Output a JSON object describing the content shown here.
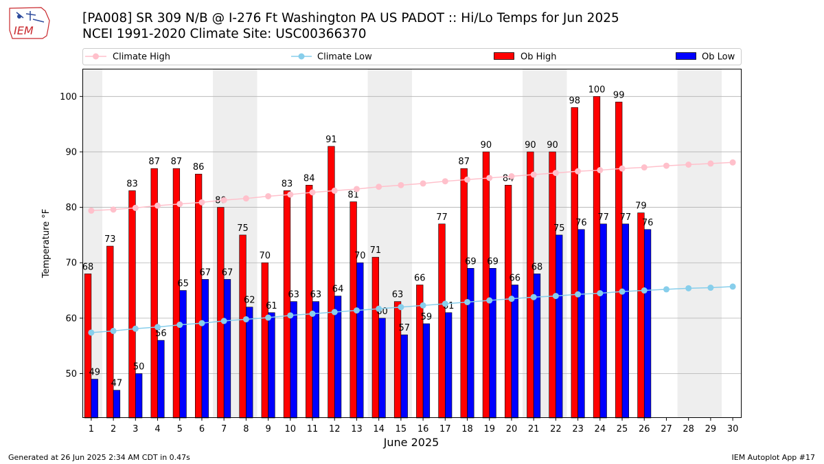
{
  "title_line1": "[PA008] SR 309 N/B @ I-276 Ft Washington PA US  PADOT :: Hi/Lo Temps for Jun 2025",
  "title_line2": "NCEI 1991-2020 Climate Site: USC00366370",
  "logo_text": "IEM",
  "footer_left": "Generated at 26 Jun 2025 2:34 AM CDT in 0.47s",
  "footer_right": "IEM Autoplot App #17",
  "colors": {
    "climate_high": "#ffc0cb",
    "climate_low": "#87ceeb",
    "ob_high": "#ff0000",
    "ob_low": "#0000ff",
    "weekend_shade": "#eeeeee",
    "grid": "#b0b0b0"
  },
  "chart_data": {
    "type": "bar",
    "xlabel": "June 2025",
    "ylabel": "Temperature °F",
    "ylim": [
      42,
      105
    ],
    "yticks": [
      50,
      60,
      70,
      80,
      90,
      100
    ],
    "grid": "horizontal",
    "legend_placement": "top",
    "shaded_weekend_days": [
      1,
      7,
      8,
      14,
      15,
      21,
      22,
      28,
      29
    ],
    "x": [
      1,
      2,
      3,
      4,
      5,
      6,
      7,
      8,
      9,
      10,
      11,
      12,
      13,
      14,
      15,
      16,
      17,
      18,
      19,
      20,
      21,
      22,
      23,
      24,
      25,
      26,
      27,
      28,
      29,
      30
    ],
    "series": [
      {
        "name": "Climate High",
        "kind": "line",
        "values": [
          79.4,
          79.6,
          79.9,
          80.3,
          80.6,
          80.9,
          81.3,
          81.6,
          82.0,
          82.3,
          82.7,
          83.0,
          83.3,
          83.7,
          84.0,
          84.3,
          84.7,
          85.0,
          85.3,
          85.6,
          85.9,
          86.2,
          86.5,
          86.7,
          87.0,
          87.2,
          87.5,
          87.7,
          87.9,
          88.1
        ]
      },
      {
        "name": "Climate Low",
        "kind": "line",
        "values": [
          57.4,
          57.7,
          58.1,
          58.4,
          58.8,
          59.1,
          59.5,
          59.8,
          60.1,
          60.5,
          60.8,
          61.1,
          61.4,
          61.7,
          62.0,
          62.3,
          62.6,
          62.9,
          63.2,
          63.5,
          63.8,
          64.0,
          64.3,
          64.5,
          64.8,
          65.0,
          65.2,
          65.4,
          65.5,
          65.7
        ]
      },
      {
        "name": "Ob High",
        "kind": "bar",
        "values": [
          68,
          73,
          83,
          87,
          87,
          86,
          80,
          75,
          70,
          83,
          84,
          91,
          81,
          71,
          63,
          66,
          77,
          87,
          90,
          84,
          90,
          90,
          98,
          100,
          99,
          79,
          null,
          null,
          null,
          null
        ]
      },
      {
        "name": "Ob Low",
        "kind": "bar",
        "values": [
          49,
          47,
          50,
          56,
          65,
          67,
          67,
          62,
          61,
          63,
          63,
          64,
          70,
          60,
          57,
          59,
          61,
          69,
          69,
          66,
          68,
          75,
          76,
          77,
          77,
          76,
          null,
          null,
          null,
          null
        ]
      }
    ]
  }
}
